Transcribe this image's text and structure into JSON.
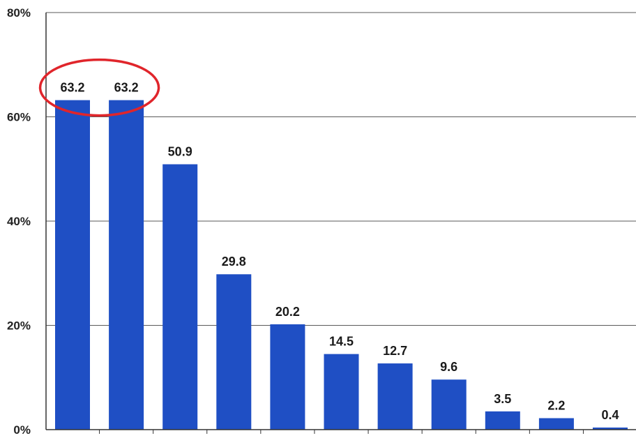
{
  "chart_data": {
    "type": "bar",
    "values": [
      63.2,
      63.2,
      50.9,
      29.8,
      20.2,
      14.5,
      12.7,
      9.6,
      3.5,
      2.2,
      0.4
    ],
    "data_labels": [
      "63.2",
      "63.2",
      "50.9",
      "29.8",
      "20.2",
      "14.5",
      "12.7",
      "9.6",
      "3.5",
      "2.2",
      "0.4"
    ],
    "y_ticks": [
      "0%",
      "20%",
      "40%",
      "60%",
      "80%"
    ],
    "ylim": [
      0,
      80
    ],
    "grid": true,
    "title": "",
    "xlabel": "",
    "ylabel": "",
    "highlight": {
      "shape": "ellipse",
      "color": "#e0252b",
      "bars": [
        0,
        1
      ]
    }
  },
  "colors": {
    "bar": "#1f4fc4",
    "grid": "#5a5a5a",
    "axis": "#333333",
    "highlight": "#e0252b"
  }
}
